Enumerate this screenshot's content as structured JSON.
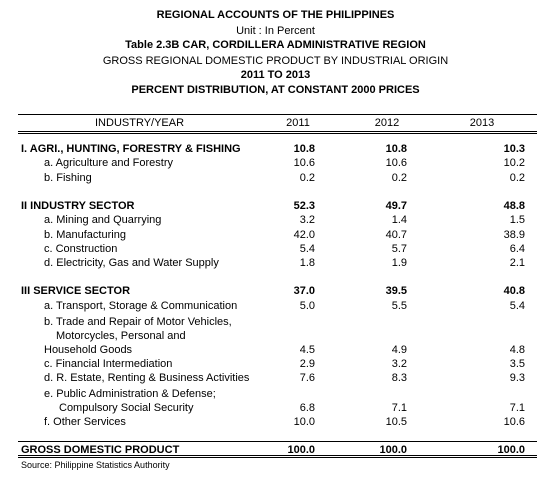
{
  "header": {
    "line1": "REGIONAL ACCOUNTS OF THE PHILIPPINES",
    "line2": "Unit : In Percent",
    "line3": "Table 2.3B  CAR, CORDILLERA ADMINISTRATIVE REGION",
    "line4": "GROSS REGIONAL DOMESTIC PRODUCT BY INDUSTRIAL ORIGIN",
    "line5": "2011 TO 2013",
    "line6": "PERCENT DISTRIBUTION, AT CONSTANT 2000 PRICES"
  },
  "table": {
    "col_industry": "INDUSTRY/YEAR",
    "years": [
      "2011",
      "2012",
      "2013"
    ],
    "rows": [
      {
        "label": "I. AGRI., HUNTING, FORESTRY & FISHING",
        "values": [
          "10.8",
          "10.8",
          "10.3"
        ]
      },
      {
        "label": "a. Agriculture and Forestry",
        "values": [
          "10.6",
          "10.6",
          "10.2"
        ]
      },
      {
        "label": "b. Fishing",
        "values": [
          "0.2",
          "0.2",
          "0.2"
        ]
      },
      {
        "label": "II  INDUSTRY SECTOR",
        "values": [
          "52.3",
          "49.7",
          "48.8"
        ]
      },
      {
        "label": "a. Mining and Quarrying",
        "values": [
          "3.2",
          "1.4",
          "1.5"
        ]
      },
      {
        "label": "b. Manufacturing",
        "values": [
          "42.0",
          "40.7",
          "38.9"
        ]
      },
      {
        "label": "c. Construction",
        "values": [
          "5.4",
          "5.7",
          "6.4"
        ]
      },
      {
        "label": "d. Electricity, Gas and Water Supply",
        "values": [
          "1.8",
          "1.9",
          "2.1"
        ]
      },
      {
        "label": "III  SERVICE SECTOR",
        "values": [
          "37.0",
          "39.5",
          "40.8"
        ]
      },
      {
        "label": "a. Transport, Storage & Communication",
        "values": [
          "5.0",
          "5.5",
          "5.4"
        ]
      },
      {
        "label": "b. Trade and Repair of Motor Vehicles,",
        "values": [
          "",
          "",
          ""
        ]
      },
      {
        "label": "Motorcycles, Personal and",
        "values": [
          "",
          "",
          ""
        ]
      },
      {
        "label": "Household Goods",
        "values": [
          "4.5",
          "4.9",
          "4.8"
        ]
      },
      {
        "label": "c.  Financial Intermediation",
        "values": [
          "2.9",
          "3.2",
          "3.5"
        ]
      },
      {
        "label": "d. R. Estate, Renting & Business Activities",
        "values": [
          "7.6",
          "8.3",
          "9.3"
        ]
      },
      {
        "label": "e. Public Administration & Defense;",
        "values": [
          "",
          "",
          ""
        ]
      },
      {
        "label": "Compulsory Social Security",
        "values": [
          "6.8",
          "7.1",
          "7.1"
        ]
      },
      {
        "label": "f. Other Services",
        "values": [
          "10.0",
          "10.5",
          "10.6"
        ]
      },
      {
        "label": "GROSS DOMESTIC PRODUCT",
        "values": [
          "100.0",
          "100.0",
          "100.0"
        ]
      }
    ]
  },
  "source": "Source: Philippine Statistics Authority"
}
